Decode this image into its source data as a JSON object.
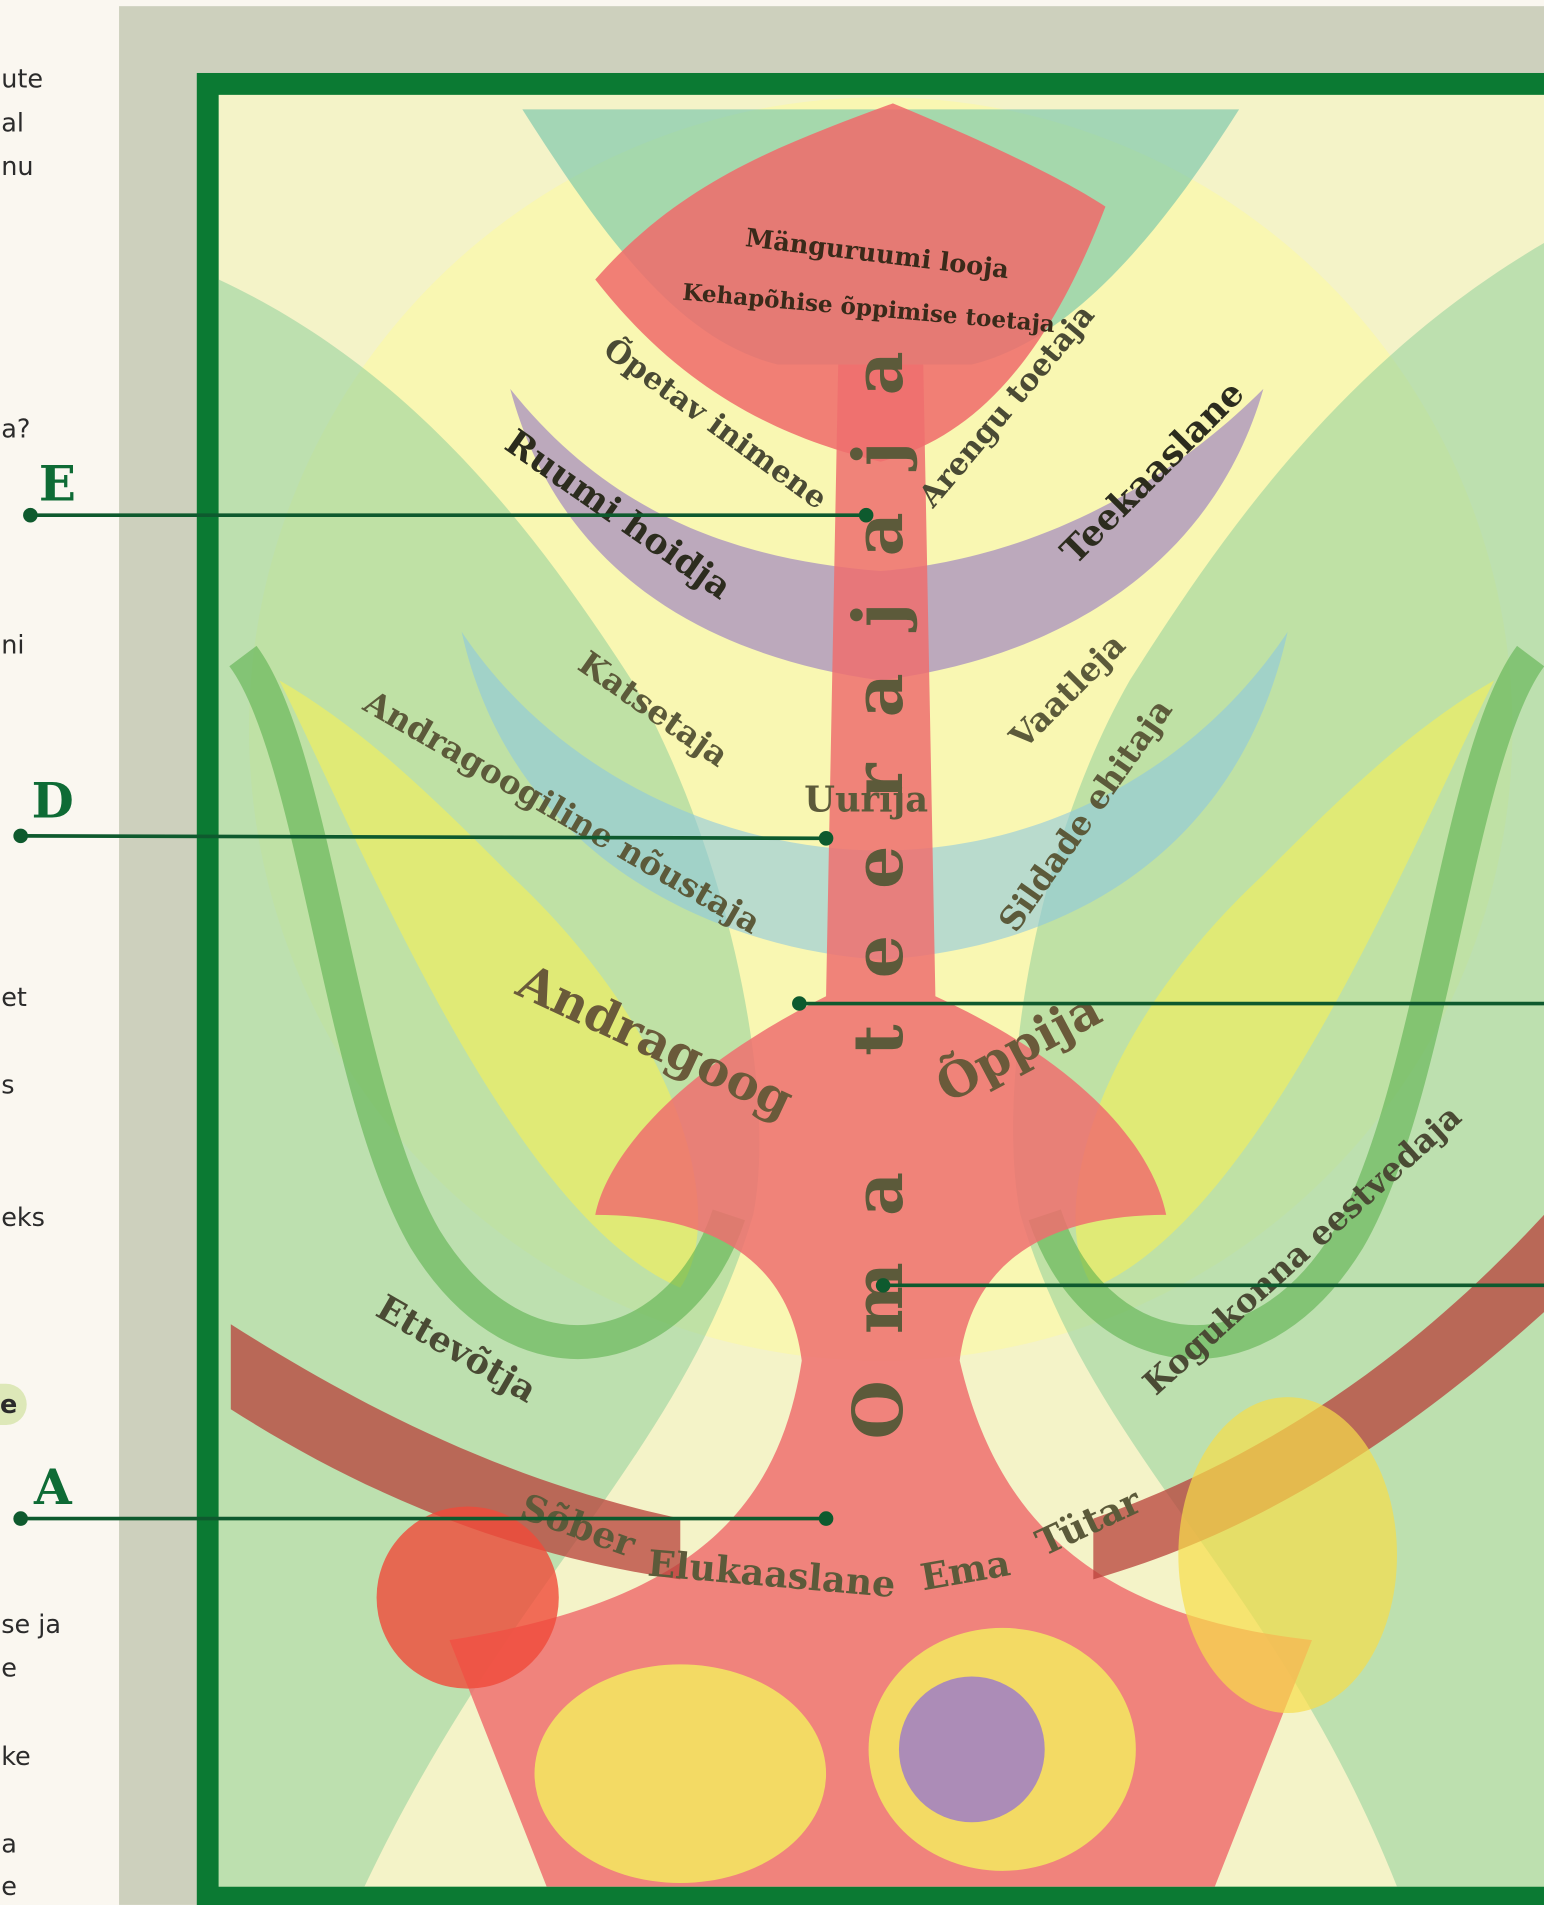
{
  "left_panel": {
    "fragments": [
      "ute",
      "al",
      "nu",
      "a?",
      "ni",
      "et",
      "s",
      "eks",
      "e",
      "se ja",
      "e",
      "ke",
      "a",
      "e"
    ]
  },
  "callouts": [
    "E",
    "D",
    "A"
  ],
  "artwork": {
    "vertical_title": "Oma teerajaja",
    "labels": [
      "Mänguruumi looja",
      "Kehapõhise õppimise toetaja",
      "Õpetav inimene",
      "Arengu toetaja",
      "Ruumi hoidja",
      "Teekaaslane",
      "Katsetaja",
      "Vaatleja",
      "Uurija",
      "Andragoogiline nõustaja",
      "Sildade ehitaja",
      "Andragoog",
      "Õppija",
      "Kogukonna eestvedaja",
      "Ettevõtja",
      "Sõber",
      "Elukaaslane",
      "Ema",
      "Tütar"
    ]
  }
}
